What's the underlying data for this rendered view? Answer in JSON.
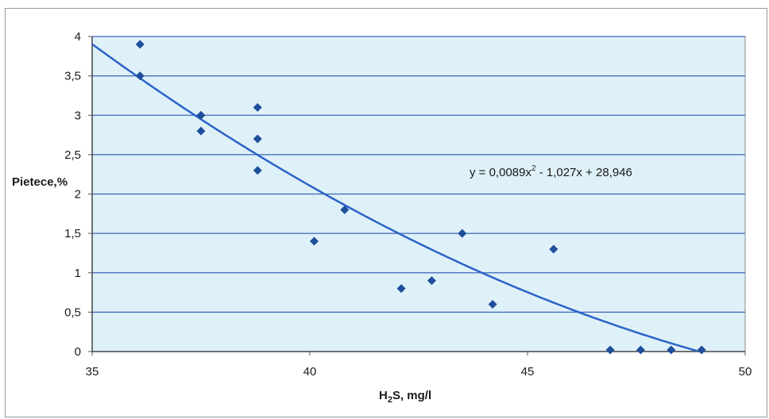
{
  "chart_data": {
    "type": "scatter",
    "xlabel_main": "H",
    "xlabel_sub": "2",
    "xlabel_rest": "S, mg/l",
    "ylabel": "Pietece,%",
    "xlim": [
      35,
      50
    ],
    "ylim": [
      0,
      4
    ],
    "x_ticks": [
      "35",
      "40",
      "45",
      "50"
    ],
    "y_ticks": [
      "0",
      "0,5",
      "1",
      "1,5",
      "2",
      "2,5",
      "3",
      "3,5",
      "4"
    ],
    "grid": "horizontal",
    "plot_background": "#dff1f8",
    "point_color": "#1f4e9c",
    "trend_color": "#2a63c8",
    "points": [
      {
        "x": 36.1,
        "y": 3.9
      },
      {
        "x": 36.1,
        "y": 3.5
      },
      {
        "x": 37.5,
        "y": 3.0
      },
      {
        "x": 37.5,
        "y": 2.8
      },
      {
        "x": 38.8,
        "y": 3.1
      },
      {
        "x": 38.8,
        "y": 2.7
      },
      {
        "x": 38.8,
        "y": 2.3
      },
      {
        "x": 40.8,
        "y": 1.8
      },
      {
        "x": 40.1,
        "y": 1.4
      },
      {
        "x": 42.1,
        "y": 0.8
      },
      {
        "x": 42.8,
        "y": 0.9
      },
      {
        "x": 43.5,
        "y": 1.5
      },
      {
        "x": 44.2,
        "y": 0.6
      },
      {
        "x": 45.6,
        "y": 1.3
      },
      {
        "x": 46.9,
        "y": 0.02
      },
      {
        "x": 47.6,
        "y": 0.02
      },
      {
        "x": 48.3,
        "y": 0.02
      },
      {
        "x": 49.0,
        "y": 0.02
      }
    ],
    "trendline": {
      "type": "polynomial",
      "coefficients": {
        "a": 0.0089,
        "b": -1.027,
        "c": 28.946
      },
      "label_prefix": "y = 0,0089x",
      "label_exp": "2",
      "label_suffix": " - 1,027x + 28,946"
    }
  }
}
